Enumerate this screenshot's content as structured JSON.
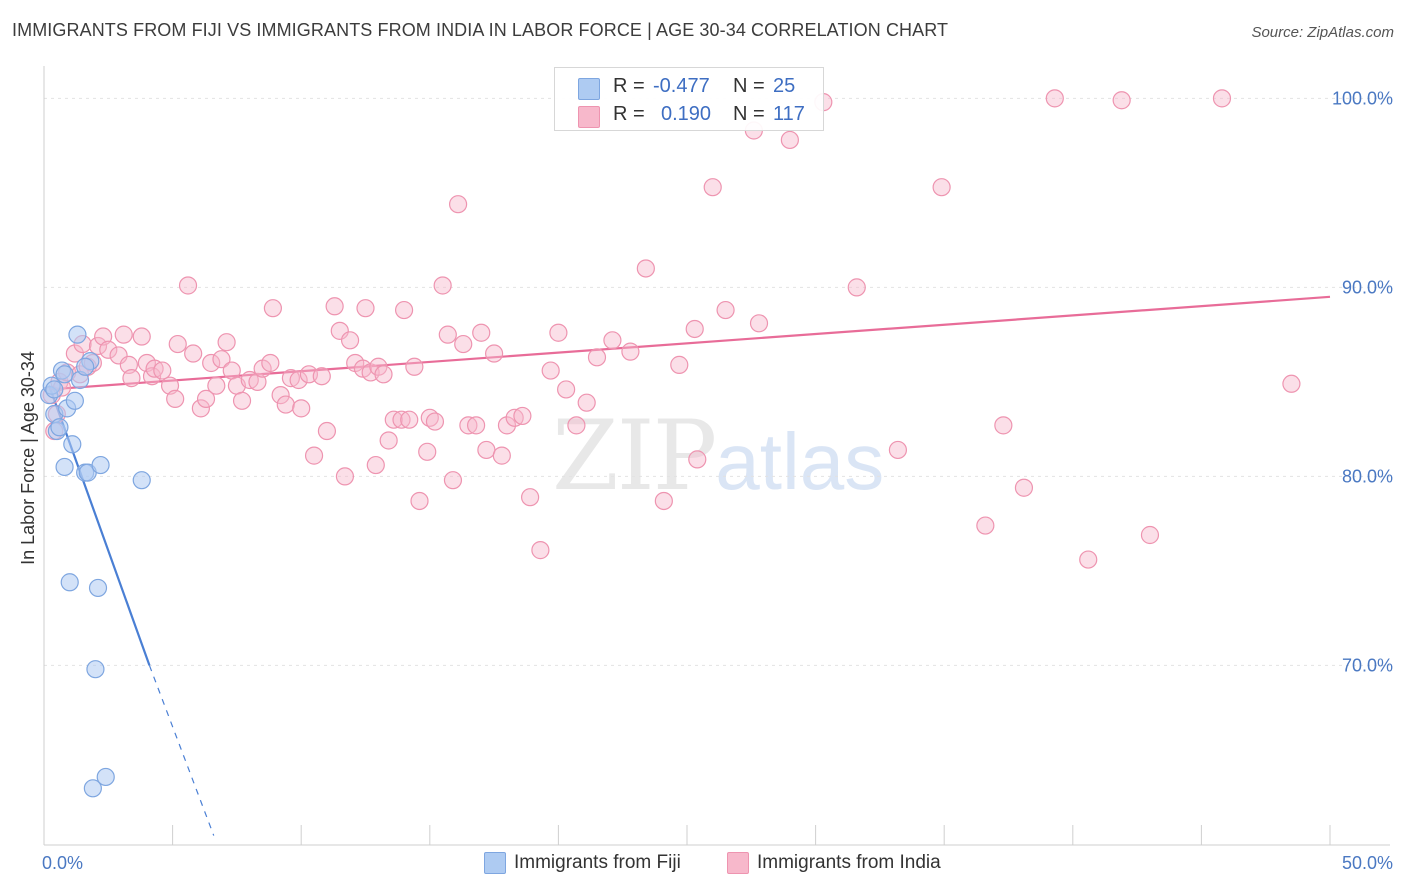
{
  "title": "IMMIGRANTS FROM FIJI VS IMMIGRANTS FROM INDIA IN LABOR FORCE | AGE 30-34 CORRELATION CHART",
  "source": "Source: ZipAtlas.com",
  "watermark": {
    "zip": "ZIP",
    "atlas": "atlas"
  },
  "legend": {
    "r_label": "R =",
    "n_label": "N =",
    "rows": [
      {
        "r": "-0.477",
        "n": "25",
        "color": "#aecbf2"
      },
      {
        "r": "0.190",
        "n": "117",
        "color": "#f7b8cb"
      }
    ]
  },
  "bottom_legend": [
    {
      "label": "Immigrants from Fiji",
      "color": "#aecbf2"
    },
    {
      "label": "Immigrants from India",
      "color": "#f7b8cb"
    }
  ],
  "colors": {
    "fiji": "#4a7fd4",
    "india": "#e86c98",
    "fiji_fill": "#aecbf2",
    "india_fill": "#f7b8cb",
    "axis_blue": "#4a78c2"
  },
  "chart_data": {
    "type": "scatter",
    "title": "IMMIGRANTS FROM FIJI VS IMMIGRANTS FROM INDIA IN LABOR FORCE | AGE 30-34 CORRELATION CHART",
    "xlabel": "",
    "ylabel": "In Labor Force | Age 30-34",
    "xlim": [
      0,
      50
    ],
    "ylim": [
      60.5,
      101.5
    ],
    "x_ticks": [
      {
        "v": 0,
        "label": "0.0%"
      },
      {
        "v": 50,
        "label": "50.0%"
      }
    ],
    "y_ticks": [
      {
        "v": 70,
        "label": "70.0%"
      },
      {
        "v": 80,
        "label": "80.0%"
      },
      {
        "v": 90,
        "label": "90.0%"
      },
      {
        "v": 100,
        "label": "100.0%"
      }
    ],
    "series": [
      {
        "name": "Immigrants from Fiji",
        "r": -0.477,
        "n": 25,
        "trend": {
          "x0": 0.2,
          "y0": 84.8,
          "x1": 4.1,
          "y1": 70.0,
          "dash_x1": 6.6,
          "dash_y1": 61.0
        },
        "points": [
          [
            0.2,
            84.3
          ],
          [
            0.3,
            84.8
          ],
          [
            0.4,
            84.6
          ],
          [
            0.4,
            83.3
          ],
          [
            0.5,
            82.4
          ],
          [
            0.6,
            82.6
          ],
          [
            0.7,
            85.6
          ],
          [
            0.8,
            85.4
          ],
          [
            0.8,
            80.5
          ],
          [
            0.9,
            83.6
          ],
          [
            1.0,
            74.4
          ],
          [
            1.1,
            81.7
          ],
          [
            1.2,
            84.0
          ],
          [
            1.3,
            87.5
          ],
          [
            1.4,
            85.1
          ],
          [
            1.6,
            80.2
          ],
          [
            1.7,
            80.2
          ],
          [
            1.8,
            86.1
          ],
          [
            1.9,
            63.5
          ],
          [
            2.0,
            69.8
          ],
          [
            2.1,
            74.1
          ],
          [
            2.2,
            80.6
          ],
          [
            2.4,
            64.1
          ],
          [
            3.8,
            79.8
          ],
          [
            1.6,
            85.8
          ]
        ]
      },
      {
        "name": "Immigrants from India",
        "r": 0.19,
        "n": 117,
        "trend": {
          "x0": 0.2,
          "y0": 84.6,
          "x1": 50,
          "y1": 89.5
        },
        "points": [
          [
            0.3,
            84.3
          ],
          [
            0.4,
            82.4
          ],
          [
            0.5,
            83.3
          ],
          [
            0.6,
            85.0
          ],
          [
            0.7,
            84.7
          ],
          [
            0.9,
            85.5
          ],
          [
            1.2,
            86.5
          ],
          [
            1.4,
            85.4
          ],
          [
            1.5,
            87.0
          ],
          [
            1.7,
            85.8
          ],
          [
            1.9,
            86.0
          ],
          [
            2.1,
            86.9
          ],
          [
            2.3,
            87.4
          ],
          [
            2.5,
            86.7
          ],
          [
            2.9,
            86.4
          ],
          [
            3.1,
            87.5
          ],
          [
            3.3,
            85.9
          ],
          [
            3.4,
            85.2
          ],
          [
            3.8,
            87.4
          ],
          [
            4.0,
            86.0
          ],
          [
            4.2,
            85.3
          ],
          [
            4.3,
            85.7
          ],
          [
            4.6,
            85.6
          ],
          [
            4.9,
            84.8
          ],
          [
            5.1,
            84.1
          ],
          [
            5.2,
            87.0
          ],
          [
            5.6,
            90.1
          ],
          [
            5.8,
            86.5
          ],
          [
            6.1,
            83.6
          ],
          [
            6.3,
            84.1
          ],
          [
            6.5,
            86.0
          ],
          [
            6.7,
            84.8
          ],
          [
            6.9,
            86.2
          ],
          [
            7.1,
            87.1
          ],
          [
            7.3,
            85.6
          ],
          [
            7.5,
            84.8
          ],
          [
            7.7,
            84.0
          ],
          [
            8.0,
            85.1
          ],
          [
            8.3,
            85.0
          ],
          [
            8.5,
            85.7
          ],
          [
            8.8,
            86.0
          ],
          [
            8.9,
            88.9
          ],
          [
            9.2,
            84.3
          ],
          [
            9.4,
            83.8
          ],
          [
            9.6,
            85.2
          ],
          [
            9.9,
            85.1
          ],
          [
            10.0,
            83.6
          ],
          [
            10.3,
            85.4
          ],
          [
            10.5,
            81.1
          ],
          [
            10.8,
            85.3
          ],
          [
            11.0,
            82.4
          ],
          [
            11.3,
            89.0
          ],
          [
            11.5,
            87.7
          ],
          [
            11.7,
            80.0
          ],
          [
            11.9,
            87.2
          ],
          [
            12.1,
            86.0
          ],
          [
            12.4,
            85.7
          ],
          [
            12.5,
            88.9
          ],
          [
            12.7,
            85.5
          ],
          [
            12.9,
            80.6
          ],
          [
            13.0,
            85.8
          ],
          [
            13.2,
            85.4
          ],
          [
            13.4,
            81.9
          ],
          [
            13.6,
            83.0
          ],
          [
            13.9,
            83.0
          ],
          [
            14.0,
            88.8
          ],
          [
            14.2,
            83.0
          ],
          [
            14.4,
            85.8
          ],
          [
            14.6,
            78.7
          ],
          [
            14.9,
            81.3
          ],
          [
            15.0,
            83.1
          ],
          [
            15.2,
            82.9
          ],
          [
            15.5,
            90.1
          ],
          [
            15.7,
            87.5
          ],
          [
            15.9,
            79.8
          ],
          [
            16.1,
            94.4
          ],
          [
            16.3,
            87.0
          ],
          [
            16.5,
            82.7
          ],
          [
            16.8,
            82.7
          ],
          [
            17.0,
            87.6
          ],
          [
            17.2,
            81.4
          ],
          [
            17.5,
            86.5
          ],
          [
            17.8,
            81.1
          ],
          [
            18.0,
            82.7
          ],
          [
            18.3,
            83.1
          ],
          [
            18.6,
            83.2
          ],
          [
            18.9,
            78.9
          ],
          [
            19.3,
            76.1
          ],
          [
            19.7,
            85.6
          ],
          [
            20.0,
            87.6
          ],
          [
            20.3,
            84.6
          ],
          [
            20.7,
            82.7
          ],
          [
            21.1,
            83.9
          ],
          [
            21.5,
            86.3
          ],
          [
            22.1,
            87.2
          ],
          [
            22.8,
            86.6
          ],
          [
            23.4,
            91.0
          ],
          [
            24.1,
            78.7
          ],
          [
            24.7,
            85.9
          ],
          [
            25.3,
            87.8
          ],
          [
            26.0,
            95.3
          ],
          [
            26.5,
            88.8
          ],
          [
            27.8,
            88.1
          ],
          [
            29.0,
            97.8
          ],
          [
            30.3,
            99.8
          ],
          [
            31.6,
            90.0
          ],
          [
            33.2,
            81.4
          ],
          [
            34.9,
            95.3
          ],
          [
            36.6,
            77.4
          ],
          [
            37.3,
            82.7
          ],
          [
            38.1,
            79.4
          ],
          [
            39.3,
            100.0
          ],
          [
            40.6,
            75.6
          ],
          [
            41.9,
            99.9
          ],
          [
            43.0,
            76.9
          ],
          [
            45.8,
            100.0
          ],
          [
            48.5,
            84.9
          ],
          [
            25.4,
            80.9
          ],
          [
            27.6,
            98.3
          ]
        ]
      }
    ],
    "grid": true,
    "legend_position": "top-center"
  }
}
